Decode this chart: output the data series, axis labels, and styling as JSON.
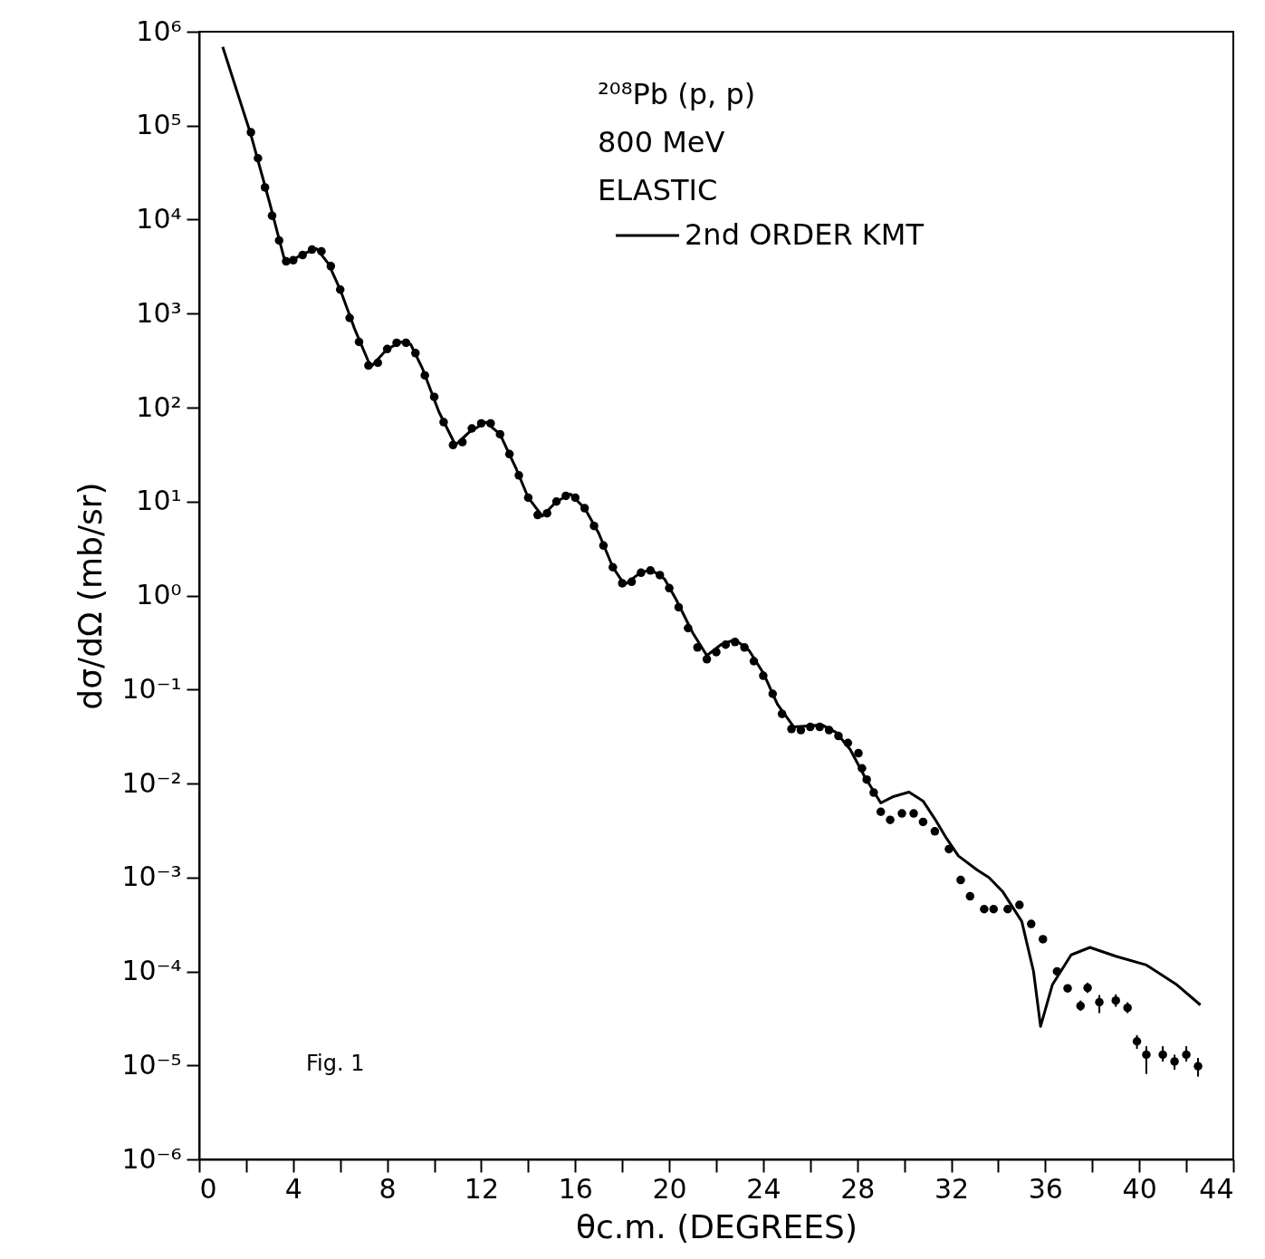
{
  "chart_data": {
    "type": "scatter",
    "xlabel": "θc.m. (DEGREES)",
    "ylabel": "dσ/dΩ (mb/sr)",
    "annotations": [
      "²⁰⁸Pb (p, p)",
      "800 MeV",
      "ELASTIC",
      "Fig. 1"
    ],
    "legend": "top right",
    "log": "y",
    "grid": false,
    "marker": "circle",
    "xlim": [
      0,
      44
    ],
    "ylim": [
      1e-06,
      1000000.0
    ],
    "xticks": [
      0,
      {
        "value": 2,
        "label": null
      },
      4,
      {
        "value": 6,
        "label": null
      },
      8,
      {
        "value": 10,
        "label": null
      },
      12,
      {
        "value": 14,
        "label": null
      },
      16,
      {
        "value": 18,
        "label": null
      },
      20,
      {
        "value": 22,
        "label": null
      },
      24,
      {
        "value": 26,
        "label": null
      },
      28,
      {
        "value": 30,
        "label": null
      },
      32,
      {
        "value": 34,
        "label": null
      },
      36,
      {
        "value": 38,
        "label": null
      },
      40,
      {
        "value": 42,
        "label": null
      },
      44
    ],
    "yticks": [
      {
        "value": 1e-06,
        "label": "10⁻⁶"
      },
      {
        "value": 1e-05,
        "label": "10⁻⁵"
      },
      {
        "value": 0.0001,
        "label": "10⁻⁴"
      },
      {
        "value": 0.001,
        "label": "10⁻³"
      },
      {
        "value": 0.01,
        "label": "10⁻²"
      },
      {
        "value": 0.1,
        "label": "10⁻¹"
      },
      {
        "value": 1,
        "label": "10⁰"
      },
      {
        "value": 10,
        "label": "10¹"
      },
      {
        "value": 100,
        "label": "10²"
      },
      {
        "value": 1000,
        "label": "10³"
      },
      {
        "value": 10000,
        "label": "10⁴"
      },
      {
        "value": 100000,
        "label": "10⁵"
      },
      {
        "value": 1000000,
        "label": "10⁶"
      }
    ],
    "series": [
      {
        "name": "2nd ORDER KMT",
        "type": "line",
        "color": "#000000",
        "line_style": "solid",
        "marker": "none",
        "x": [
          1.0,
          2.2,
          3.0,
          3.6,
          3.8,
          4.4,
          5.0,
          5.5,
          6.0,
          6.6,
          7.3,
          8.0,
          8.6,
          9.0,
          9.5,
          10.2,
          10.9,
          11.5,
          12.2,
          12.8,
          13.5,
          14.0,
          14.6,
          15.2,
          15.8,
          16.4,
          17.0,
          17.6,
          18.1,
          18.7,
          19.2,
          19.8,
          20.3,
          21.0,
          21.6,
          22.2,
          22.8,
          23.4,
          24.0,
          24.6,
          25.3,
          25.9,
          26.5,
          27.1,
          27.7,
          28.3,
          29.0,
          29.5,
          30.2,
          30.8,
          31.3,
          31.8,
          32.3,
          33.1,
          33.6,
          34.2,
          35.0,
          35.5,
          35.8,
          36.3,
          37.1,
          37.9,
          39.0,
          40.3,
          41.6,
          42.6
        ],
        "values": [
          690000,
          80000,
          15000,
          4000,
          3500,
          4300,
          4900,
          3400,
          1800,
          700,
          270,
          420,
          500,
          470,
          260,
          90,
          40,
          55,
          70,
          52,
          22,
          11,
          7,
          10,
          12,
          8.5,
          4.6,
          2.0,
          1.3,
          1.7,
          1.9,
          1.5,
          0.9,
          0.4,
          0.23,
          0.3,
          0.34,
          0.26,
          0.15,
          0.07,
          0.04,
          0.041,
          0.042,
          0.035,
          0.023,
          0.012,
          0.0062,
          0.0072,
          0.0081,
          0.0065,
          0.0042,
          0.0026,
          0.0017,
          0.0012,
          0.001,
          0.0007,
          0.00034,
          0.0001,
          2.6e-05,
          7.2e-05,
          0.00015,
          0.00018,
          0.000145,
          0.000117,
          7.2e-05,
          4.4e-05
        ]
      },
      {
        "color": "#000000",
        "x": [
          2.2,
          2.5,
          2.8,
          3.1,
          3.4,
          3.7,
          4.0,
          4.4,
          4.8,
          5.2,
          5.6,
          6.0,
          6.4,
          6.8,
          7.2,
          7.6,
          8.0,
          8.4,
          8.8,
          9.2,
          9.6,
          10.0,
          10.4,
          10.8,
          11.2,
          11.6,
          12.0,
          12.4,
          12.8,
          13.2,
          13.6,
          14.0,
          14.4,
          14.8,
          15.2,
          15.6,
          16.0,
          16.4,
          16.8,
          17.2,
          17.6,
          18.0,
          18.4,
          18.8,
          19.2,
          19.6,
          20.0,
          20.4,
          20.8,
          21.2,
          21.6,
          22.0,
          22.4,
          22.8,
          23.2,
          23.6,
          24.0,
          24.4,
          24.8,
          25.2,
          25.6,
          26.0,
          26.4,
          26.8,
          27.2,
          27.6,
          28.05,
          28.2,
          28.4,
          28.7,
          29.0,
          29.4,
          29.9,
          30.4,
          30.8,
          31.3,
          31.9,
          32.4,
          32.8,
          33.4,
          33.8,
          34.4,
          34.9,
          35.4,
          35.9,
          36.5,
          36.95,
          37.5,
          37.8,
          38.3,
          39.0,
          39.5,
          39.9,
          40.3,
          41.0,
          41.5,
          42.0,
          42.5
        ],
        "values": [
          85000,
          45000,
          22000,
          11000,
          6000,
          3600,
          3700,
          4200,
          4800,
          4600,
          3200,
          1800,
          900,
          500,
          280,
          300,
          420,
          490,
          490,
          380,
          220,
          130,
          70,
          40,
          43,
          60,
          68,
          68,
          52,
          32,
          19,
          11,
          7.2,
          7.5,
          10,
          11.5,
          11,
          8.5,
          5.5,
          3.4,
          2.0,
          1.35,
          1.4,
          1.75,
          1.85,
          1.65,
          1.2,
          0.75,
          0.45,
          0.28,
          0.21,
          0.25,
          0.3,
          0.32,
          0.28,
          0.2,
          0.14,
          0.09,
          0.055,
          0.038,
          0.037,
          0.04,
          0.04,
          0.037,
          0.032,
          0.027,
          0.021,
          0.0145,
          0.011,
          0.008,
          0.005,
          0.0041,
          0.0048,
          0.0048,
          0.0039,
          0.0031,
          0.002,
          0.00094,
          0.00063,
          0.00046,
          0.00046,
          0.00046,
          0.00051,
          0.00032,
          0.00022,
          0.0001,
          6.6e-05,
          4.3e-05,
          6.7e-05,
          4.7e-05,
          4.9e-05,
          4.1e-05,
          1.8e-05,
          1.3e-05,
          1.3e-05,
          1.1e-05,
          1.3e-05,
          9.8e-06
        ],
        "errors": [
          null,
          null,
          null,
          null,
          null,
          null,
          null,
          null,
          null,
          null,
          null,
          null,
          null,
          null,
          null,
          null,
          null,
          null,
          null,
          null,
          null,
          null,
          null,
          null,
          null,
          null,
          null,
          null,
          null,
          null,
          null,
          null,
          null,
          null,
          null,
          null,
          null,
          null,
          null,
          null,
          null,
          null,
          null,
          null,
          null,
          null,
          null,
          null,
          null,
          null,
          null,
          null,
          null,
          null,
          null,
          null,
          null,
          null,
          null,
          null,
          null,
          null,
          null,
          null,
          null,
          null,
          null,
          null,
          null,
          null,
          null,
          null,
          null,
          null,
          null,
          null,
          null,
          null,
          null,
          null,
          null,
          null,
          null,
          null,
          null,
          null,
          null,
          [
            3.8e-05,
            4.9e-05
          ],
          [
            5.9e-05,
            7.6e-05
          ],
          [
            3.6e-05,
            5.6e-05
          ],
          [
            4.2e-05,
            5.7e-05
          ],
          [
            3.6e-05,
            4.7e-05
          ],
          [
            1.5e-05,
            2.1e-05
          ],
          [
            8.1e-06,
            1.6e-05
          ],
          [
            1.1e-05,
            1.6e-05
          ],
          [
            9e-06,
            1.3e-05
          ],
          [
            1.1e-05,
            1.6e-05
          ],
          [
            7.6e-06,
            1.2e-05
          ]
        ]
      }
    ]
  }
}
